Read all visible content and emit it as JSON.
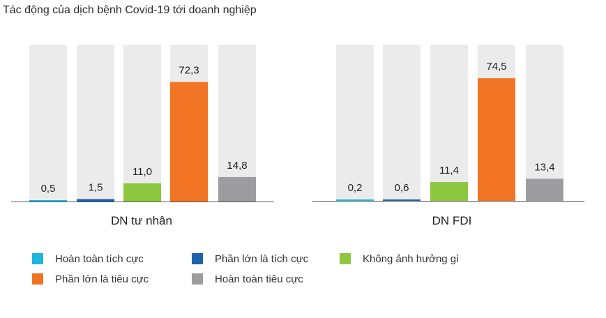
{
  "title": "Tác động của dịch bệnh Covid-19 tới doanh nghiệp",
  "colors": {
    "background_bar": "#ebebeb",
    "axis": "#555555",
    "series": [
      "#1fb5dd",
      "#1f62ac",
      "#8dc63f",
      "#f07423",
      "#9d9d9f"
    ]
  },
  "legend": [
    {
      "label": "Hoàn toàn tích cực"
    },
    {
      "label": "Phần lớn là tích cực"
    },
    {
      "label": "Không ảnh hưởng gì"
    },
    {
      "label": "Phần lớn là tiêu cực"
    },
    {
      "label": "Hoàn toàn tiêu cực"
    }
  ],
  "chart_data": [
    {
      "type": "bar",
      "group_label": "DN tư nhân",
      "categories": [
        "Hoàn toàn tích cực",
        "Phần lớn là tích cực",
        "Không ảnh hưởng gì",
        "Phần lớn là tiêu cực",
        "Hoàn toàn tiêu cực"
      ],
      "values": [
        0.5,
        1.5,
        11.0,
        72.3,
        14.8
      ],
      "value_labels": [
        "0,5",
        "1,5",
        "11,0",
        "72,3",
        "14,8"
      ],
      "ylim": [
        0,
        100
      ]
    },
    {
      "type": "bar",
      "group_label": "DN FDI",
      "categories": [
        "Hoàn toàn tích cực",
        "Phần lớn là tích cực",
        "Không ảnh hưởng gì",
        "Phần lớn là tiêu cực",
        "Hoàn toàn tiêu cực"
      ],
      "values": [
        0.2,
        0.6,
        11.4,
        74.5,
        13.4
      ],
      "value_labels": [
        "0,2",
        "0,6",
        "11,4",
        "74,5",
        "13,4"
      ],
      "ylim": [
        0,
        100
      ]
    }
  ]
}
